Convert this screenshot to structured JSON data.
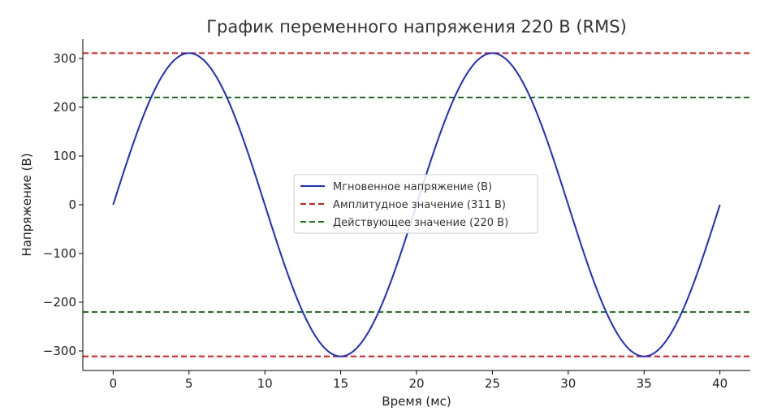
{
  "chart_data": {
    "type": "line",
    "title": "График переменного напряжения 220 В (RMS)",
    "xlabel": "Время (мс)",
    "ylabel": "Напряжение (В)",
    "xlim": [
      -2,
      42
    ],
    "ylim": [
      -340,
      340
    ],
    "xticks": [
      0,
      5,
      10,
      15,
      20,
      25,
      30,
      35,
      40
    ],
    "xtick_labels": [
      "0",
      "5",
      "10",
      "15",
      "20",
      "25",
      "30",
      "35",
      "40"
    ],
    "yticks": [
      -300,
      -200,
      -100,
      0,
      100,
      200,
      300
    ],
    "ytick_labels": [
      "−300",
      "−200",
      "−100",
      "0",
      "100",
      "200",
      "300"
    ],
    "grid": false,
    "legend_position": "center",
    "series": [
      {
        "name": "Мгновенное напряжение (В)",
        "style": "solid",
        "color": "#1f2bd4",
        "function": "311*sin(2*pi*50*t)",
        "x_unit": "мс",
        "x_range": [
          0,
          40
        ],
        "amplitude": 311,
        "frequency_hz": 50
      },
      {
        "name": "Амплитудное значение (311 В)",
        "style": "dashed",
        "color": "#e0191e",
        "hlines": [
          311,
          -311
        ]
      },
      {
        "name": "Действующее значение (220 В)",
        "style": "dashed",
        "color": "#1f7a1f",
        "hlines": [
          220,
          -220
        ]
      }
    ]
  }
}
